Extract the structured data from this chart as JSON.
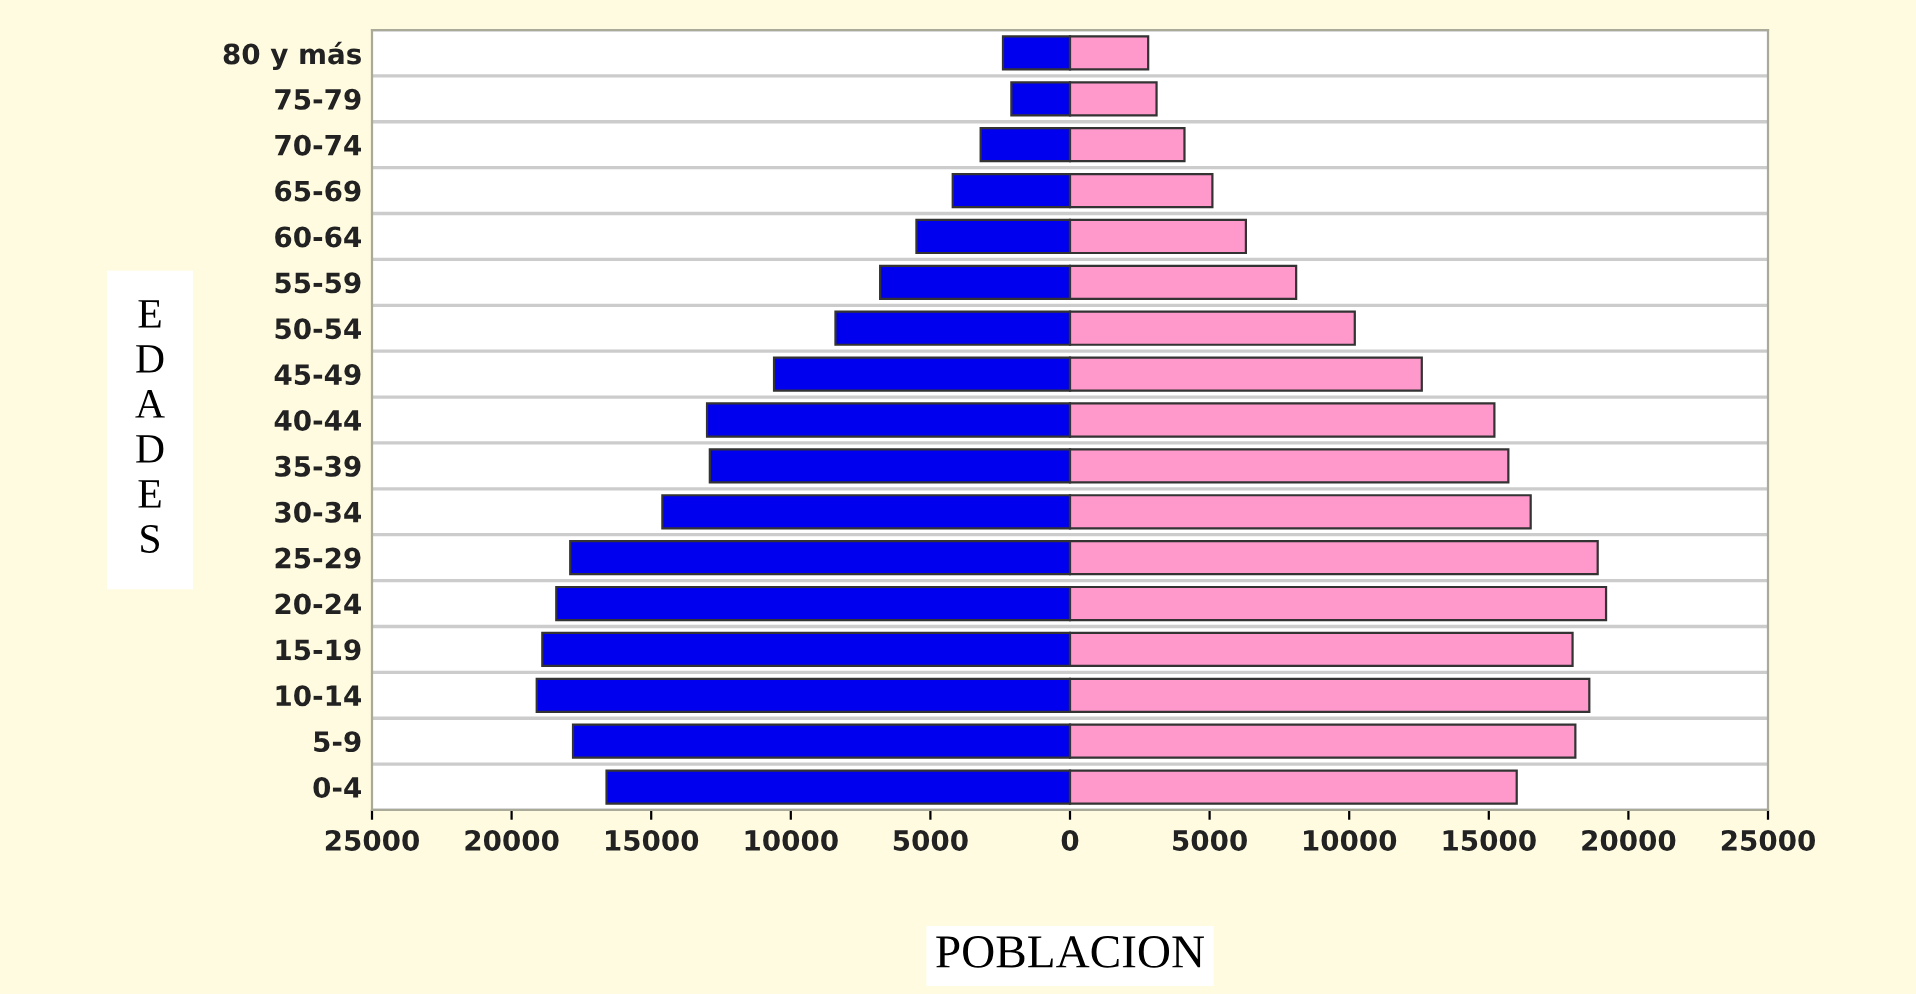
{
  "chart_data": {
    "type": "bar",
    "orientation": "horizontal",
    "xlabel": "POBLACION",
    "ylabel": "E\nD\nA\nD\nE\nS",
    "categories": [
      "80 y más",
      "75-79",
      "70-74",
      "65-69",
      "60-64",
      "55-59",
      "50-54",
      "45-49",
      "40-44",
      "35-39",
      "30-34",
      "25-29",
      "20-24",
      "15-19",
      "10-14",
      "5-9",
      "0-4"
    ],
    "series": [
      {
        "color": "#0000ee",
        "values": [
          -2400,
          -2100,
          -3200,
          -4200,
          -5500,
          -6800,
          -8400,
          -10600,
          -13000,
          -12900,
          -14600,
          -17900,
          -18400,
          -18900,
          -19100,
          -17800,
          -16600
        ]
      },
      {
        "color": "#ff99cc",
        "values": [
          2800,
          3100,
          4100,
          5100,
          6300,
          8100,
          10200,
          12600,
          15200,
          15700,
          16500,
          18900,
          19200,
          18000,
          18600,
          18100,
          16000
        ]
      }
    ],
    "xlim": [
      -25000,
      25000
    ],
    "xticks": [
      {
        "value": -25000,
        "label": "25000"
      },
      {
        "value": -20000,
        "label": "20000"
      },
      {
        "value": -15000,
        "label": "15000"
      },
      {
        "value": -10000,
        "label": "10000"
      },
      {
        "value": -5000,
        "label": "5000"
      },
      0,
      5000,
      10000,
      15000,
      20000,
      25000
    ],
    "grid": "y",
    "stacked": true
  }
}
